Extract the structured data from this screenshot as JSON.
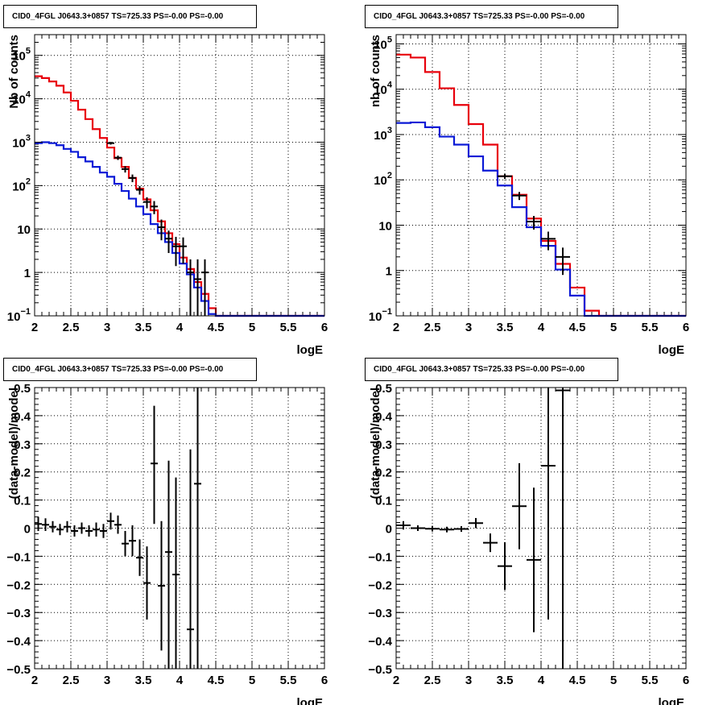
{
  "chart_data": [
    {
      "type": "line",
      "title": "CID0_4FGL J0643.3+0857 TS=725.33 PS=-0.00 PS=-0.00",
      "xlabel": "logE",
      "ylabel": "Nb of counts",
      "xlim": [
        2,
        6
      ],
      "ylim": [
        0.1,
        300000
      ],
      "yscale": "log",
      "grid": true,
      "xticks": [
        "2",
        "2.5",
        "3",
        "3.5",
        "4",
        "4.5",
        "5",
        "5.5",
        "6"
      ],
      "yticks": [
        {
          "v": 0.1,
          "base": "10",
          "exp": "−1"
        },
        {
          "v": 1,
          "label": "1"
        },
        {
          "v": 10,
          "label": "10"
        },
        {
          "v": 100,
          "base": "10",
          "exp": "2"
        },
        {
          "v": 1000,
          "base": "10",
          "exp": "3"
        },
        {
          "v": 10000,
          "base": "10",
          "exp": "4"
        },
        {
          "v": 100000,
          "base": "10",
          "exp": "5"
        }
      ],
      "bin_width": 0.1,
      "series": [
        {
          "color": "#e8000b",
          "style": "hist",
          "x": [
            2.0,
            2.1,
            2.2,
            2.3,
            2.4,
            2.5,
            2.6,
            2.7,
            2.8,
            2.9,
            3.0,
            3.1,
            3.2,
            3.3,
            3.4,
            3.5,
            3.6,
            3.7,
            3.8,
            3.9,
            4.0,
            4.1,
            4.2,
            4.3,
            4.4,
            4.5,
            4.6,
            4.7,
            4.8,
            4.9,
            5.0,
            5.1,
            5.2,
            5.3,
            5.4,
            5.5,
            5.6,
            5.7,
            5.8,
            5.9
          ],
          "y": [
            33000,
            30000,
            25000,
            20000,
            14000,
            9000,
            5600,
            3400,
            2000,
            1250,
            750,
            430,
            270,
            150,
            85,
            48,
            27,
            15,
            8,
            4.5,
            2.2,
            1.2,
            0.6,
            0.32,
            0.15,
            0.1,
            0.1,
            0.1,
            0.1,
            0.1,
            0.1,
            0.1,
            0.1,
            0.1,
            0.1,
            0.1,
            0.1,
            0.1,
            0.1,
            0.1
          ]
        },
        {
          "color": "#0a1ad6",
          "style": "hist",
          "x": [
            2.0,
            2.1,
            2.2,
            2.3,
            2.4,
            2.5,
            2.6,
            2.7,
            2.8,
            2.9,
            3.0,
            3.1,
            3.2,
            3.3,
            3.4,
            3.5,
            3.6,
            3.7,
            3.8,
            3.9,
            4.0,
            4.1,
            4.2,
            4.3,
            4.4,
            4.5,
            4.6,
            4.7,
            4.8,
            4.9,
            5.0,
            5.1,
            5.2,
            5.3,
            5.4,
            5.5,
            5.6,
            5.7,
            5.8,
            5.9
          ],
          "y": [
            950,
            1000,
            950,
            850,
            700,
            600,
            450,
            360,
            270,
            200,
            160,
            110,
            75,
            50,
            33,
            22,
            13,
            8,
            5,
            2.8,
            1.6,
            0.9,
            0.45,
            0.22,
            0.11,
            0.1,
            0.1,
            0.1,
            0.1,
            0.1,
            0.1,
            0.1,
            0.1,
            0.1,
            0.1,
            0.1,
            0.1,
            0.1,
            0.1,
            0.1
          ]
        },
        {
          "color": "#000000",
          "style": "errorbar",
          "x": [
            3.05,
            3.15,
            3.25,
            3.35,
            3.45,
            3.55,
            3.65,
            3.75,
            3.85,
            3.95,
            4.05,
            4.15,
            4.25,
            4.35
          ],
          "y": [
            950,
            440,
            240,
            150,
            80,
            42,
            33,
            11,
            6,
            4,
            4,
            1,
            0.7,
            1
          ],
          "lo": [
            880,
            390,
            200,
            120,
            62,
            30,
            22,
            5.5,
            2.8,
            1.4,
            1.6,
            0.1,
            0.1,
            0.1
          ],
          "hi": [
            1020,
            490,
            280,
            180,
            98,
            54,
            44,
            16.5,
            9.2,
            6.6,
            6.4,
            2,
            2,
            2
          ]
        }
      ]
    },
    {
      "type": "line",
      "title": "CID0_4FGL J0643.3+0857 TS=725.33 PS=-0.00 PS=-0.00",
      "xlabel": "logE",
      "ylabel": "nb of counts",
      "xlim": [
        2,
        6
      ],
      "ylim": [
        0.1,
        160000
      ],
      "yscale": "log",
      "grid": true,
      "xticks": [
        "2",
        "2.5",
        "3",
        "3.5",
        "4",
        "4.5",
        "5",
        "5.5",
        "6"
      ],
      "yticks": [
        {
          "v": 0.1,
          "base": "10",
          "exp": "−1"
        },
        {
          "v": 1,
          "label": "1"
        },
        {
          "v": 10,
          "label": "10"
        },
        {
          "v": 100,
          "base": "10",
          "exp": "2"
        },
        {
          "v": 1000,
          "base": "10",
          "exp": "3"
        },
        {
          "v": 10000,
          "base": "10",
          "exp": "4"
        },
        {
          "v": 100000,
          "base": "10",
          "exp": "5"
        }
      ],
      "bin_width": 0.2,
      "series": [
        {
          "color": "#e8000b",
          "style": "hist",
          "x": [
            2.0,
            2.2,
            2.4,
            2.6,
            2.8,
            3.0,
            3.2,
            3.4,
            3.6,
            3.8,
            4.0,
            4.2,
            4.4,
            4.6,
            4.8,
            5.0,
            5.2,
            5.4,
            5.6,
            5.8
          ],
          "y": [
            58000,
            50000,
            24000,
            10500,
            4500,
            1700,
            600,
            120,
            47,
            14,
            4.5,
            1.4,
            0.42,
            0.13,
            0.1,
            0.1,
            0.1,
            0.1,
            0.1,
            0.1
          ]
        },
        {
          "color": "#0a1ad6",
          "style": "hist",
          "x": [
            2.0,
            2.2,
            2.4,
            2.6,
            2.8,
            3.0,
            3.2,
            3.4,
            3.6,
            3.8,
            4.0,
            4.2,
            4.4,
            4.6,
            4.8,
            5.0,
            5.2,
            5.4,
            5.6,
            5.8
          ],
          "y": [
            1800,
            1850,
            1450,
            900,
            600,
            330,
            160,
            75,
            25,
            9,
            3.5,
            1.05,
            0.28,
            0.1,
            0.1,
            0.1,
            0.1,
            0.1,
            0.1,
            0.1
          ]
        },
        {
          "color": "#000000",
          "style": "errorbar",
          "x": [
            3.5,
            3.7,
            3.9,
            4.1,
            4.3
          ],
          "y": [
            120,
            45,
            12,
            5,
            2
          ],
          "lo": [
            105,
            36,
            8,
            2.8,
            0.8
          ],
          "hi": [
            135,
            54,
            16,
            7.2,
            3.2
          ]
        }
      ]
    },
    {
      "type": "scatter",
      "title": "CID0_4FGL J0643.3+0857 TS=725.33 PS=-0.00 PS=-0.00",
      "xlabel": "logE",
      "ylabel": "(data-model)/model",
      "xlim": [
        2,
        6
      ],
      "ylim": [
        -0.5,
        0.5
      ],
      "yscale": "linear",
      "grid": true,
      "xticks": [
        "2",
        "2.5",
        "3",
        "3.5",
        "4",
        "4.5",
        "5",
        "5.5",
        "6"
      ],
      "yticks": [
        {
          "v": -0.5,
          "label": "−0.5"
        },
        {
          "v": -0.4,
          "label": "−0.4"
        },
        {
          "v": -0.3,
          "label": "−0.3"
        },
        {
          "v": -0.2,
          "label": "−0.2"
        },
        {
          "v": -0.1,
          "label": "−0.1"
        },
        {
          "v": 0,
          "label": "0"
        },
        {
          "v": 0.1,
          "label": "0.1"
        },
        {
          "v": 0.2,
          "label": "0.2"
        },
        {
          "v": 0.3,
          "label": "0.3"
        },
        {
          "v": 0.4,
          "label": "0.4"
        },
        {
          "v": 0.5,
          "label": "0.5"
        }
      ],
      "bin_width": 0.1,
      "series": [
        {
          "color": "#000000",
          "style": "errorbar",
          "x": [
            2.05,
            2.15,
            2.25,
            2.35,
            2.45,
            2.55,
            2.65,
            2.75,
            2.85,
            2.95,
            3.05,
            3.15,
            3.25,
            3.35,
            3.45,
            3.55,
            3.65,
            3.75,
            3.85,
            3.95,
            4.15,
            4.25
          ],
          "y": [
            0.015,
            0.012,
            0.005,
            -0.005,
            0.005,
            -0.01,
            0.0,
            -0.01,
            -0.005,
            -0.01,
            0.025,
            0.012,
            -0.055,
            -0.045,
            -0.105,
            -0.195,
            0.23,
            -0.205,
            -0.085,
            -0.165,
            -0.36,
            0.158
          ],
          "lo": [
            -0.01,
            -0.01,
            -0.015,
            -0.025,
            -0.015,
            -0.03,
            -0.02,
            -0.03,
            -0.03,
            -0.035,
            -0.005,
            -0.02,
            -0.1,
            -0.1,
            -0.17,
            -0.325,
            0.015,
            -0.435,
            -0.5,
            -0.5,
            -0.5,
            -0.5
          ],
          "hi": [
            0.04,
            0.035,
            0.025,
            0.015,
            0.025,
            0.01,
            0.02,
            0.01,
            0.02,
            0.015,
            0.055,
            0.045,
            -0.01,
            0.01,
            -0.04,
            -0.065,
            0.435,
            0.025,
            0.24,
            0.18,
            0.28,
            0.5
          ]
        }
      ]
    },
    {
      "type": "scatter",
      "title": "CID0_4FGL J0643.3+0857 TS=725.33 PS=-0.00 PS=-0.00",
      "xlabel": "logE",
      "ylabel": "(data-model)/model",
      "xlim": [
        2,
        6
      ],
      "ylim": [
        -0.5,
        0.5
      ],
      "yscale": "linear",
      "grid": true,
      "xticks": [
        "2",
        "2.5",
        "3",
        "3.5",
        "4",
        "4.5",
        "5",
        "5.5",
        "6"
      ],
      "yticks": [
        {
          "v": -0.5,
          "label": "−0.5"
        },
        {
          "v": -0.4,
          "label": "−0.4"
        },
        {
          "v": -0.3,
          "label": "−0.3"
        },
        {
          "v": -0.2,
          "label": "−0.2"
        },
        {
          "v": -0.1,
          "label": "−0.1"
        },
        {
          "v": 0,
          "label": "0"
        },
        {
          "v": 0.1,
          "label": "0.1"
        },
        {
          "v": 0.2,
          "label": "0.2"
        },
        {
          "v": 0.3,
          "label": "0.3"
        },
        {
          "v": 0.4,
          "label": "0.4"
        },
        {
          "v": 0.5,
          "label": "0.5"
        }
      ],
      "bin_width": 0.2,
      "series": [
        {
          "color": "#000000",
          "style": "errorbar",
          "x": [
            2.1,
            2.3,
            2.5,
            2.7,
            2.9,
            3.1,
            3.3,
            3.5,
            3.7,
            3.9,
            4.1,
            4.3
          ],
          "y": [
            0.01,
            0.0,
            -0.002,
            -0.005,
            -0.003,
            0.018,
            -0.052,
            -0.135,
            0.078,
            -0.113,
            0.222,
            0.49
          ],
          "lo": [
            -0.005,
            -0.01,
            -0.012,
            -0.015,
            -0.013,
            0.0,
            -0.085,
            -0.22,
            -0.075,
            -0.37,
            -0.325,
            -0.5
          ],
          "hi": [
            0.025,
            0.01,
            0.008,
            0.005,
            0.007,
            0.036,
            -0.019,
            -0.05,
            0.231,
            0.144,
            0.5,
            0.5
          ]
        }
      ]
    }
  ]
}
